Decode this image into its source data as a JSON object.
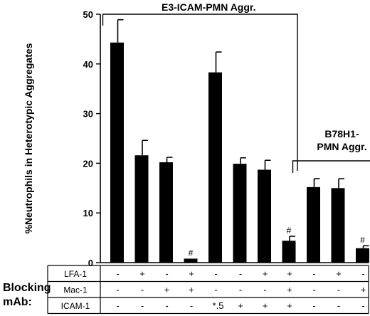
{
  "chart_data": {
    "type": "bar",
    "ylabel": "%Neutrophils in Heterotypic Aggregates",
    "ylim": [
      0,
      50
    ],
    "yticks": [
      "0",
      "10",
      "20",
      "30",
      "40",
      "50"
    ],
    "values": [
      44.3,
      21.6,
      20.2,
      0.8,
      38.3,
      19.9,
      18.7,
      4.4,
      15.2,
      15.0,
      2.9
    ],
    "errors": [
      4.6,
      3.0,
      1.0,
      0.0,
      4.1,
      1.2,
      1.9,
      0.9,
      1.7,
      1.9,
      0.5
    ],
    "bar_color": "#000000",
    "markers": [
      {
        "bar": 3,
        "text": "#"
      },
      {
        "bar": 7,
        "text": "#"
      },
      {
        "bar": 10,
        "text": "#"
      }
    ],
    "groups": [
      {
        "label_lines": [
          "E3-ICAM-PMN Aggr."
        ],
        "from": 0,
        "to": 7
      },
      {
        "label_lines": [
          "B78H1-",
          "PMN Aggr."
        ],
        "from": 8,
        "to": 10
      }
    ],
    "table": {
      "title_lines": [
        "Blocking",
        "mAb:"
      ],
      "rows": [
        {
          "label": "LFA-1",
          "cells": [
            "-",
            "+",
            "-",
            "+",
            "-",
            "-",
            "+",
            "+",
            "-",
            "+",
            "-"
          ]
        },
        {
          "label": "Mac-1",
          "cells": [
            "-",
            "-",
            "+",
            "+",
            "-",
            "-",
            "-",
            "+",
            "-",
            "-",
            "+"
          ]
        },
        {
          "label": "ICAM-1",
          "cells": [
            "-",
            "-",
            "-",
            "-",
            "*.5",
            "+",
            "+",
            "+",
            "-",
            "-",
            "-"
          ]
        }
      ]
    }
  }
}
